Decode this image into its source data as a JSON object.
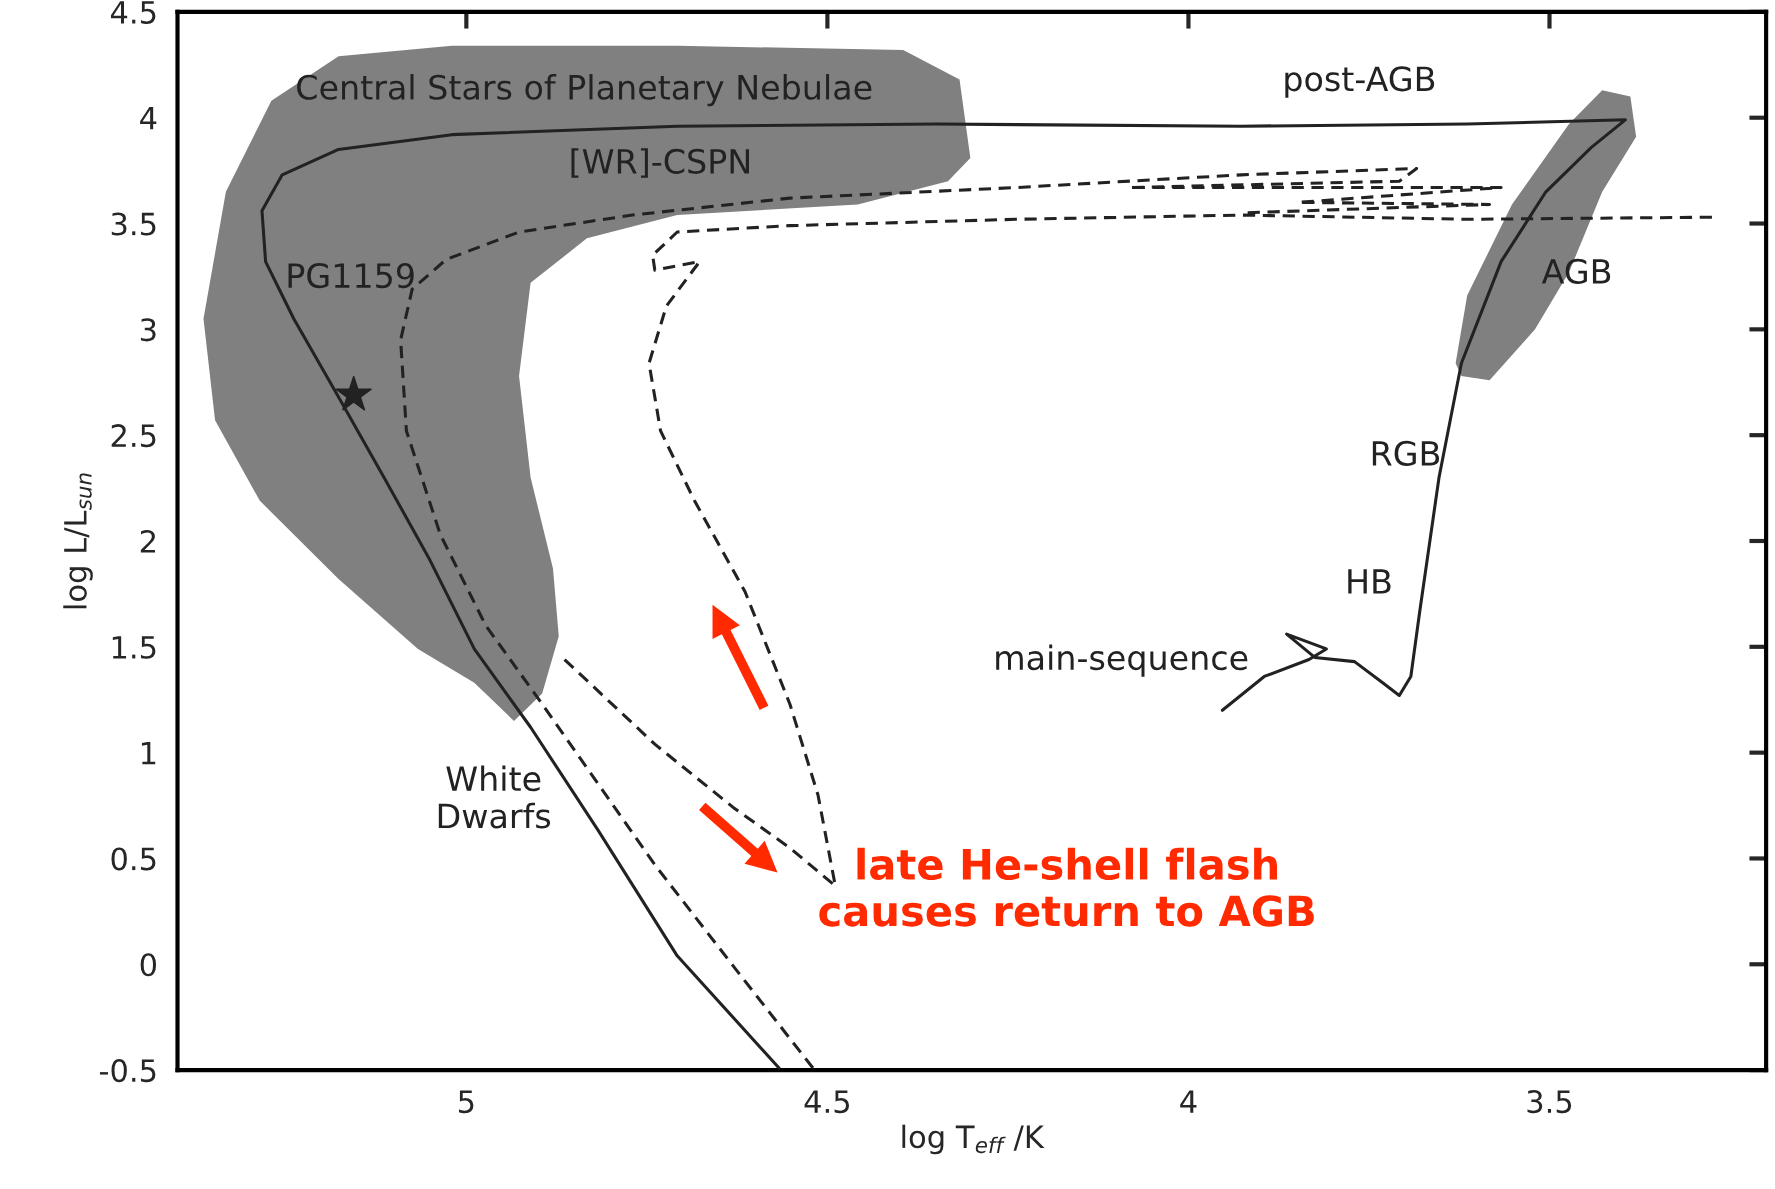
{
  "chart_data": {
    "type": "line",
    "xlabel": "log T$_{eff}$ /K",
    "ylabel": "log L/L$_{sun}$",
    "xlim": [
      5.4,
      3.2
    ],
    "ylim": [
      -0.5,
      4.5
    ],
    "xticks": [
      5,
      4.5,
      4,
      3.5
    ],
    "yticks": [
      -0.5,
      0,
      0.5,
      1,
      1.5,
      2,
      2.5,
      3,
      3.5,
      4,
      4.5
    ],
    "grid": false,
    "series": [
      {
        "type": "area",
        "color": "#808080",
        "x": [
          5.364,
          5.333,
          5.27,
          5.177,
          5.02,
          4.708,
          4.395,
          4.317,
          4.302,
          4.333,
          4.458,
          4.708,
          4.833,
          4.911,
          4.927,
          4.911,
          4.88,
          4.872,
          4.895,
          4.934,
          4.989,
          5.067,
          5.177,
          5.286,
          5.348
        ],
        "values": [
          3.05,
          3.65,
          4.08,
          4.29,
          4.34,
          4.34,
          4.32,
          4.18,
          3.81,
          3.7,
          3.59,
          3.54,
          3.43,
          3.22,
          2.78,
          2.3,
          1.87,
          1.55,
          1.28,
          1.15,
          1.33,
          1.49,
          1.82,
          2.19,
          2.57
        ]
      },
      {
        "type": "area",
        "color": "#808080",
        "x": [
          3.63,
          3.614,
          3.552,
          3.473,
          3.427,
          3.388,
          3.38,
          3.427,
          3.473,
          3.52,
          3.583,
          3.622
        ],
        "values": [
          2.84,
          3.16,
          3.59,
          3.97,
          4.13,
          4.1,
          3.91,
          3.65,
          3.27,
          3.0,
          2.76,
          2.78
        ]
      },
      {
        "color": "#222222",
        "line_style": "solid",
        "x": [
          3.953,
          3.895,
          3.833,
          3.809,
          3.864,
          3.825,
          3.77,
          3.731,
          3.708,
          3.692,
          3.68,
          3.653,
          3.622,
          3.567,
          3.505,
          3.442,
          3.395,
          3.614,
          3.927,
          4.348,
          4.708,
          5.02,
          5.177,
          5.255,
          5.283,
          5.278,
          5.239,
          5.177,
          5.114,
          5.052,
          4.989,
          4.911,
          4.817,
          4.708,
          4.567
        ],
        "values": [
          1.2,
          1.36,
          1.44,
          1.49,
          1.56,
          1.45,
          1.43,
          1.33,
          1.27,
          1.36,
          1.66,
          2.3,
          2.84,
          3.32,
          3.65,
          3.86,
          3.99,
          3.97,
          3.96,
          3.97,
          3.96,
          3.92,
          3.85,
          3.73,
          3.56,
          3.32,
          3.05,
          2.68,
          2.3,
          1.92,
          1.49,
          1.12,
          0.63,
          0.04,
          -0.49
        ]
      },
      {
        "color": "#222222",
        "line_style": "dashed",
        "x": [
          4.52,
          4.63,
          4.739,
          4.817,
          4.895,
          4.973,
          5.036,
          5.083,
          5.091,
          5.075,
          5.028,
          4.927,
          4.77,
          4.552,
          4.239,
          3.927,
          3.684,
          3.708,
          4.083,
          3.567,
          3.848,
          3.583,
          3.927
        ],
        "values": [
          -0.49,
          -0.01,
          0.47,
          0.85,
          1.23,
          1.6,
          2.03,
          2.52,
          2.95,
          3.19,
          3.33,
          3.46,
          3.54,
          3.62,
          3.67,
          3.73,
          3.76,
          3.7,
          3.67,
          3.67,
          3.6,
          3.59,
          3.55
        ]
      },
      {
        "color": "#222222",
        "line_style": "dashed",
        "x": [
          4.864,
          4.739,
          4.63,
          4.552,
          4.489,
          4.513,
          4.552,
          4.614,
          4.684,
          4.731,
          4.747,
          4.723,
          4.677,
          4.739,
          4.742,
          4.708,
          4.552,
          4.239,
          3.927,
          3.614,
          3.27
        ],
        "values": [
          1.44,
          1.04,
          0.74,
          0.55,
          0.37,
          0.8,
          1.23,
          1.76,
          2.19,
          2.52,
          2.84,
          3.11,
          3.32,
          3.28,
          3.35,
          3.46,
          3.49,
          3.52,
          3.54,
          3.52,
          3.53
        ]
      },
      {
        "type": "scatter",
        "color": "#222222",
        "marker": "star",
        "x": [
          5.156
        ],
        "values": [
          2.69
        ]
      }
    ],
    "annotations": [
      "Central Stars of Planetary Nebulae",
      "[WR]-CSPN",
      "PG1159",
      "post-AGB",
      "AGB",
      "RGB",
      "HB",
      "main-sequence",
      "White\nDwarfs",
      "late He-shell flash\ncauses return to AGB"
    ]
  }
}
